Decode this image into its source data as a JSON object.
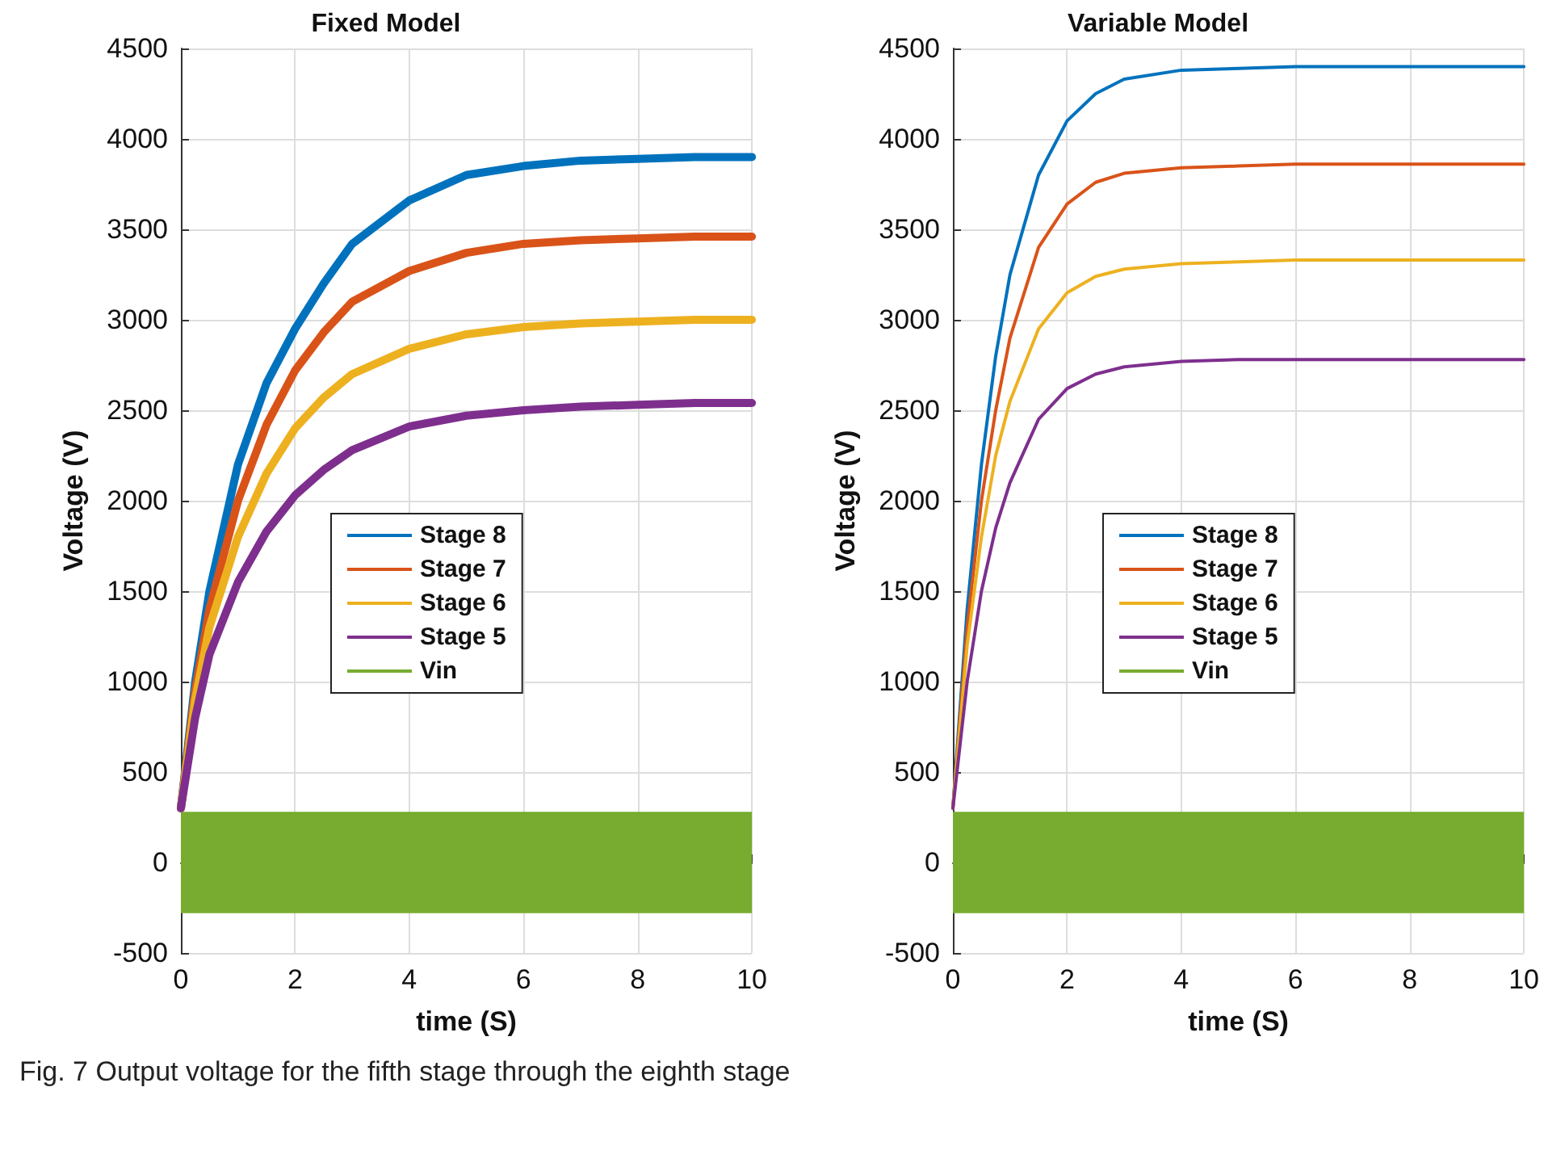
{
  "chart_data": [
    {
      "type": "line",
      "title": "Fixed Model",
      "xlabel": "time (S)",
      "ylabel": "Voltage (V)",
      "xlim": [
        0,
        10
      ],
      "xticks": [
        0,
        2,
        4,
        6,
        8,
        10
      ],
      "ylim": [
        -500,
        4500
      ],
      "yticks": [
        -500,
        0,
        500,
        1000,
        1500,
        2000,
        2500,
        3000,
        3500,
        4000,
        4500
      ],
      "grid": true,
      "legend": "center",
      "marker": "none",
      "line_style": "solid",
      "series": [
        {
          "name": "Stage 8",
          "color": "#0072bd",
          "x": [
            0,
            0.25,
            0.5,
            1,
            1.5,
            2,
            2.5,
            3,
            4,
            5,
            6,
            7,
            8,
            9,
            10
          ],
          "values": [
            300,
            1000,
            1500,
            2200,
            2650,
            2950,
            3200,
            3420,
            3660,
            3800,
            3850,
            3880,
            3890,
            3900,
            3900
          ]
        },
        {
          "name": "Stage 7",
          "color": "#d95319",
          "x": [
            0,
            0.25,
            0.5,
            1,
            1.5,
            2,
            2.5,
            3,
            4,
            5,
            6,
            7,
            8,
            9,
            10
          ],
          "values": [
            300,
            950,
            1400,
            2000,
            2420,
            2720,
            2930,
            3100,
            3270,
            3370,
            3420,
            3440,
            3450,
            3460,
            3460
          ]
        },
        {
          "name": "Stage 6",
          "color": "#edb120",
          "x": [
            0,
            0.25,
            0.5,
            1,
            1.5,
            2,
            2.5,
            3,
            4,
            5,
            6,
            7,
            8,
            9,
            10
          ],
          "values": [
            300,
            900,
            1300,
            1800,
            2150,
            2400,
            2570,
            2700,
            2840,
            2920,
            2960,
            2980,
            2990,
            3000,
            3000
          ]
        },
        {
          "name": "Stage 5",
          "color": "#7e2f8e",
          "x": [
            0,
            0.25,
            0.5,
            1,
            1.5,
            2,
            2.5,
            3,
            4,
            5,
            6,
            7,
            8,
            9,
            10
          ],
          "values": [
            300,
            800,
            1150,
            1550,
            1830,
            2030,
            2170,
            2280,
            2410,
            2470,
            2500,
            2520,
            2530,
            2540,
            2540
          ]
        },
        {
          "name": "Vin",
          "color": "#77ac30",
          "x": [
            0,
            10
          ],
          "values": [
            null,
            null
          ],
          "lower": [
            -280,
            -280
          ],
          "upper": [
            280,
            280
          ]
        }
      ],
      "annotations": [
        "Fig. 7  Output voltage for the fifth stage through the eighth stage"
      ]
    },
    {
      "type": "line",
      "title": "Variable Model",
      "xlabel": "time (S)",
      "ylabel": "Voltage (V)",
      "xlim": [
        0,
        10
      ],
      "xticks": [
        0,
        2,
        4,
        6,
        8,
        10
      ],
      "ylim": [
        -500,
        4500
      ],
      "yticks": [
        -500,
        0,
        500,
        1000,
        1500,
        2000,
        2500,
        3000,
        3500,
        4000,
        4500
      ],
      "grid": true,
      "legend": "center",
      "marker": "none",
      "line_style": "solid",
      "series": [
        {
          "name": "Stage 8",
          "color": "#0072bd",
          "x": [
            0,
            0.25,
            0.5,
            0.75,
            1,
            1.5,
            2,
            2.5,
            3,
            4,
            5,
            6,
            8,
            10
          ],
          "values": [
            300,
            1400,
            2200,
            2800,
            3250,
            3800,
            4100,
            4250,
            4330,
            4380,
            4390,
            4400,
            4400,
            4400
          ]
        },
        {
          "name": "Stage 7",
          "color": "#d95319",
          "x": [
            0,
            0.25,
            0.5,
            0.75,
            1,
            1.5,
            2,
            2.5,
            3,
            4,
            5,
            6,
            8,
            10
          ],
          "values": [
            300,
            1300,
            2000,
            2500,
            2900,
            3400,
            3640,
            3760,
            3810,
            3840,
            3850,
            3860,
            3860,
            3860
          ]
        },
        {
          "name": "Stage 6",
          "color": "#edb120",
          "x": [
            0,
            0.25,
            0.5,
            0.75,
            1,
            1.5,
            2,
            2.5,
            3,
            4,
            5,
            6,
            8,
            10
          ],
          "values": [
            300,
            1200,
            1800,
            2250,
            2550,
            2950,
            3150,
            3240,
            3280,
            3310,
            3320,
            3330,
            3330,
            3330
          ]
        },
        {
          "name": "Stage 5",
          "color": "#7e2f8e",
          "x": [
            0,
            0.25,
            0.5,
            0.75,
            1,
            1.5,
            2,
            2.5,
            3,
            4,
            5,
            6,
            8,
            10
          ],
          "values": [
            300,
            1000,
            1500,
            1850,
            2100,
            2450,
            2620,
            2700,
            2740,
            2770,
            2780,
            2780,
            2780,
            2780
          ]
        },
        {
          "name": "Vin",
          "color": "#77ac30",
          "x": [
            0,
            10
          ],
          "values": [
            null,
            null
          ],
          "lower": [
            -280,
            -280
          ],
          "upper": [
            280,
            280
          ]
        }
      ]
    }
  ]
}
